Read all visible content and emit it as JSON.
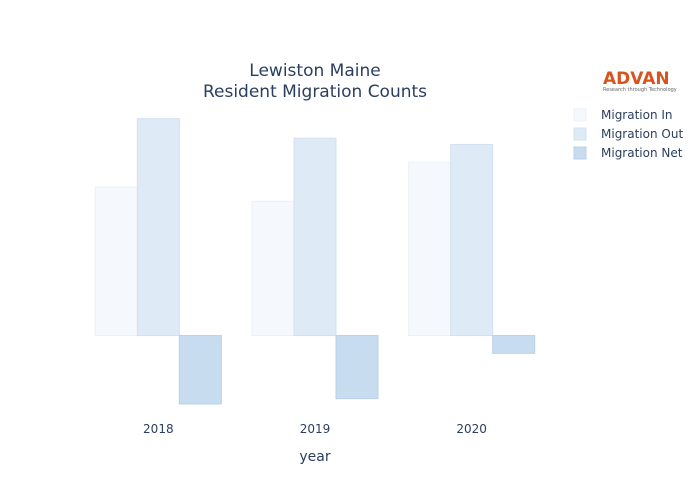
{
  "chart_data": {
    "type": "bar",
    "title_lines": [
      "Lewiston Maine",
      "Resident Migration Counts"
    ],
    "xlabel": "year",
    "ylabel": "",
    "categories": [
      "2018",
      "2019",
      "2020"
    ],
    "ylim": [
      -770,
      2470
    ],
    "grid": false,
    "legend_position": "top-right",
    "series": [
      {
        "name": "Migration In",
        "values": [
          1670,
          1510,
          1950
        ],
        "color": "#f5f9fd",
        "stroke": "#eaf1f9"
      },
      {
        "name": "Migration Out",
        "values": [
          2440,
          2220,
          2150
        ],
        "color": "#deeaf6",
        "stroke": "#d2e2f2"
      },
      {
        "name": "Migration Net",
        "values": [
          -770,
          -710,
          -200
        ],
        "color": "#c8dcf0",
        "stroke": "#b8d0ea"
      }
    ]
  },
  "logo": {
    "name": "ADVAN",
    "tagline": "Research through Technology"
  }
}
